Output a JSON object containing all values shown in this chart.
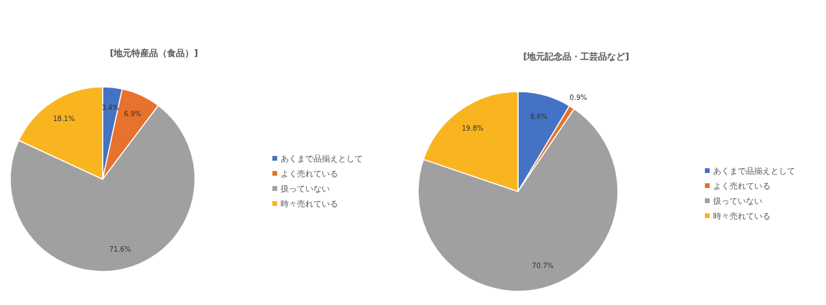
{
  "chart_data": [
    {
      "type": "pie",
      "title": "[地元特産品（食品）]",
      "categories": [
        "あくまで品揃えとして",
        "よく売れている",
        "扱っていない",
        "時々売れている"
      ],
      "values": [
        3.4,
        6.9,
        71.6,
        18.1
      ],
      "value_labels": [
        "3.4%",
        "6.9%",
        "71.6%",
        "18.1%"
      ],
      "colors": [
        "#4472c4",
        "#e6722e",
        "#a0a0a0",
        "#f9b520"
      ],
      "legend": "right"
    },
    {
      "type": "pie",
      "title": "[地元記念品・工芸品など]",
      "categories": [
        "あくまで品揃えとして",
        "よく売れている",
        "扱っていない",
        "時々売れている"
      ],
      "values": [
        8.6,
        0.9,
        70.7,
        19.8
      ],
      "value_labels": [
        "8.6%",
        "0.9%",
        "70.7%",
        "19.8%"
      ],
      "colors": [
        "#4472c4",
        "#e6722e",
        "#a0a0a0",
        "#f9b520"
      ],
      "legend": "right"
    }
  ]
}
